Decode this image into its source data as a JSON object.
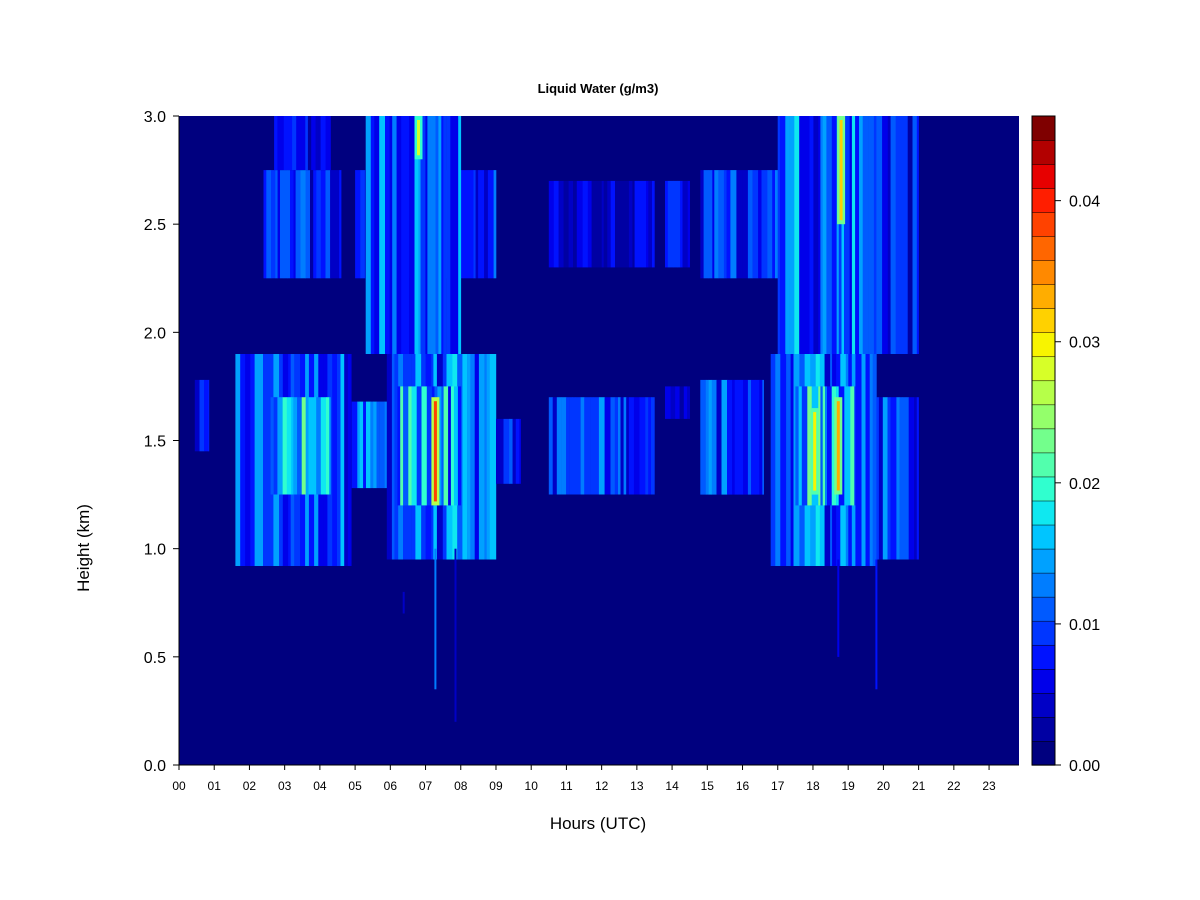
{
  "chart_data": {
    "type": "heatmap",
    "title": "Liquid Water (g/m3)",
    "xlabel": "Hours (UTC)",
    "ylabel": "Height (km)",
    "x_ticks": [
      "00",
      "01",
      "02",
      "03",
      "04",
      "05",
      "06",
      "07",
      "08",
      "09",
      "10",
      "11",
      "12",
      "13",
      "14",
      "15",
      "16",
      "17",
      "18",
      "19",
      "20",
      "21",
      "22",
      "23"
    ],
    "xlim": [
      0,
      23.85
    ],
    "y_ticks": [
      "0.0",
      "0.5",
      "1.0",
      "1.5",
      "2.0",
      "2.5",
      "3.0"
    ],
    "ylim": [
      0,
      3.0
    ],
    "colorbar": {
      "ticks": [
        "0.00",
        "0.01",
        "0.02",
        "0.03",
        "0.04"
      ],
      "range": [
        0,
        0.046
      ],
      "colors": [
        "#00007F",
        "#0000A3",
        "#0000C6",
        "#0000EA",
        "#0012FF",
        "#0036FF",
        "#005AFF",
        "#007DFF",
        "#00A1FF",
        "#00C5FF",
        "#0FE8F0",
        "#30FFCF",
        "#52FFAD",
        "#73FF8C",
        "#94FF6B",
        "#B6FF49",
        "#D7FF28",
        "#F8F400",
        "#FFD100",
        "#FFAD00",
        "#FF8900",
        "#FF6600",
        "#FF4200",
        "#FF1E00",
        "#E70000",
        "#B20000",
        "#7F0000"
      ]
    },
    "cloud_bands": [
      {
        "hours": [
          0.45,
          0.85
        ],
        "heights": [
          1.45,
          1.78
        ],
        "level": 0.007
      },
      {
        "hours": [
          1.6,
          4.9
        ],
        "heights": [
          0.92,
          1.9
        ],
        "level": 0.012
      },
      {
        "hours": [
          2.6,
          4.3
        ],
        "heights": [
          1.25,
          1.7
        ],
        "level": 0.017
      },
      {
        "hours": [
          2.4,
          4.6
        ],
        "heights": [
          2.25,
          2.75
        ],
        "level": 0.009
      },
      {
        "hours": [
          2.7,
          4.3
        ],
        "heights": [
          2.75,
          3.0
        ],
        "level": 0.008
      },
      {
        "hours": [
          4.9,
          6.0
        ],
        "heights": [
          1.28,
          1.68
        ],
        "level": 0.012
      },
      {
        "hours": [
          5.9,
          9.0
        ],
        "heights": [
          0.95,
          1.9
        ],
        "level": 0.013
      },
      {
        "hours": [
          6.2,
          8.0
        ],
        "heights": [
          1.2,
          1.75
        ],
        "level": 0.017
      },
      {
        "hours": [
          5.0,
          9.0
        ],
        "heights": [
          2.25,
          2.75
        ],
        "level": 0.01
      },
      {
        "hours": [
          5.3,
          8.0
        ],
        "heights": [
          1.9,
          3.0
        ],
        "level": 0.013
      },
      {
        "hours": [
          9.0,
          9.7
        ],
        "heights": [
          1.3,
          1.6
        ],
        "level": 0.008
      },
      {
        "hours": [
          10.5,
          13.5
        ],
        "heights": [
          1.25,
          1.7
        ],
        "level": 0.011
      },
      {
        "hours": [
          10.5,
          13.5
        ],
        "heights": [
          2.3,
          2.7
        ],
        "level": 0.006
      },
      {
        "hours": [
          13.8,
          14.5
        ],
        "heights": [
          1.6,
          1.75
        ],
        "level": 0.008
      },
      {
        "hours": [
          13.8,
          14.5
        ],
        "heights": [
          2.3,
          2.7
        ],
        "level": 0.008
      },
      {
        "hours": [
          14.8,
          16.6
        ],
        "heights": [
          1.25,
          1.78
        ],
        "level": 0.011
      },
      {
        "hours": [
          14.8,
          20.9
        ],
        "heights": [
          2.25,
          2.75
        ],
        "level": 0.01
      },
      {
        "hours": [
          16.8,
          19.8
        ],
        "heights": [
          0.92,
          1.9
        ],
        "level": 0.014
      },
      {
        "hours": [
          17.5,
          19.2
        ],
        "heights": [
          1.2,
          1.75
        ],
        "level": 0.018
      },
      {
        "hours": [
          17.0,
          19.8
        ],
        "heights": [
          1.9,
          3.0
        ],
        "level": 0.014
      },
      {
        "hours": [
          19.8,
          21.0
        ],
        "heights": [
          0.95,
          1.7
        ],
        "level": 0.011
      },
      {
        "hours": [
          19.8,
          21.0
        ],
        "heights": [
          1.9,
          3.0
        ],
        "level": 0.009
      }
    ],
    "peaks": [
      {
        "hour": 7.28,
        "heights": [
          1.2,
          1.7
        ],
        "value": 0.038
      },
      {
        "hour": 18.05,
        "heights": [
          1.25,
          1.65
        ],
        "value": 0.03
      },
      {
        "hour": 18.72,
        "heights": [
          1.25,
          1.7
        ],
        "value": 0.033
      },
      {
        "hour": 18.8,
        "heights": [
          2.5,
          3.0
        ],
        "value": 0.032
      },
      {
        "hour": 6.8,
        "heights": [
          2.8,
          3.0
        ],
        "value": 0.028
      }
    ],
    "streaks": [
      {
        "hour": 7.28,
        "heights": [
          0.35,
          1.0
        ],
        "value": 0.012
      },
      {
        "hour": 7.85,
        "heights": [
          0.2,
          1.0
        ],
        "value": 0.005
      },
      {
        "hour": 6.38,
        "heights": [
          0.7,
          0.8
        ],
        "value": 0.005
      },
      {
        "hour": 18.72,
        "heights": [
          0.5,
          0.95
        ],
        "value": 0.006
      },
      {
        "hour": 19.8,
        "heights": [
          0.35,
          0.95
        ],
        "value": 0.007
      }
    ]
  }
}
